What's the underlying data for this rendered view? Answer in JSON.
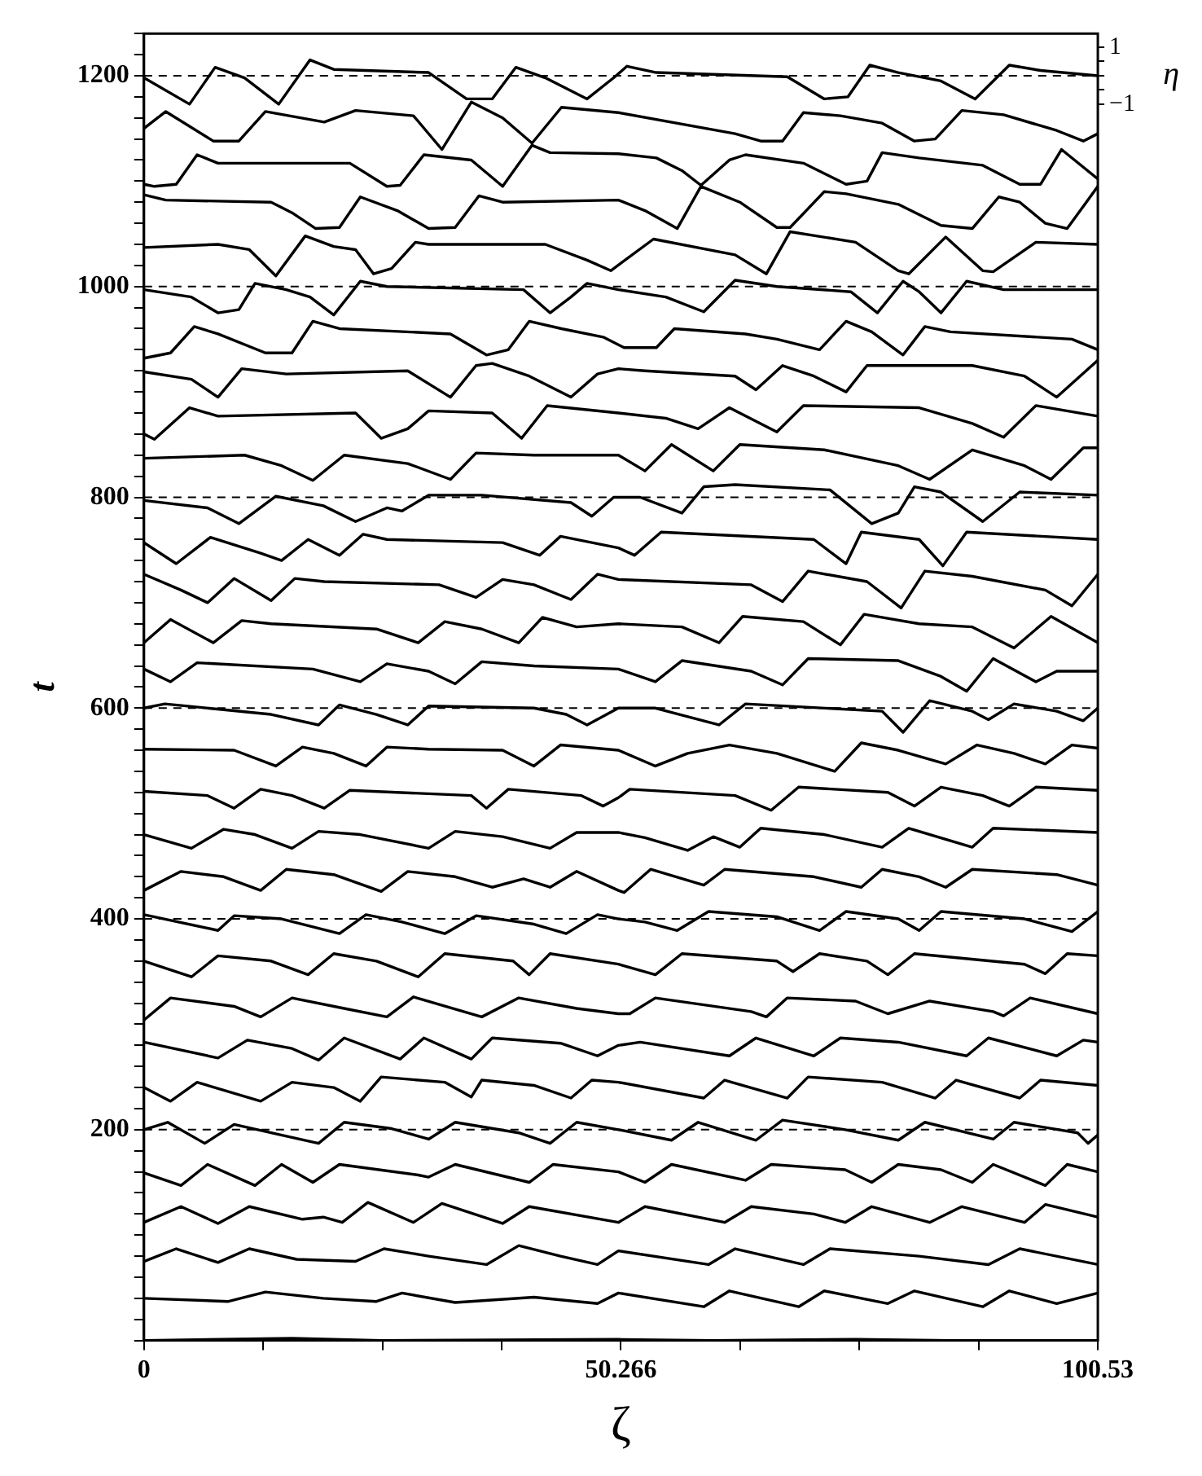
{
  "chart_data": {
    "type": "line",
    "xlabel": "ζ",
    "ylabel": "t",
    "y2label": "η",
    "marker": "none",
    "line_style": "solid",
    "xlim": [
      0,
      100.53
    ],
    "xticks": [
      0,
      {
        "value": 12.566,
        "label": null
      },
      {
        "value": 25.133,
        "label": null
      },
      {
        "value": 37.699,
        "label": null
      },
      50.266,
      {
        "value": 62.832,
        "label": null
      },
      {
        "value": 75.398,
        "label": null
      },
      {
        "value": 87.965,
        "label": null
      },
      100.53
    ],
    "ylim": [
      0,
      1240
    ],
    "yticks": [
      {
        "value": 0,
        "label": null
      },
      {
        "value": 20,
        "label": null
      },
      {
        "value": 40,
        "label": null
      },
      {
        "value": 60,
        "label": null
      },
      {
        "value": 80,
        "label": null
      },
      {
        "value": 100,
        "label": null
      },
      {
        "value": 120,
        "label": null
      },
      {
        "value": 140,
        "label": null
      },
      {
        "value": 160,
        "label": null
      },
      {
        "value": 180,
        "label": null
      },
      200,
      {
        "value": 220,
        "label": null
      },
      {
        "value": 240,
        "label": null
      },
      {
        "value": 260,
        "label": null
      },
      {
        "value": 280,
        "label": null
      },
      {
        "value": 300,
        "label": null
      },
      {
        "value": 320,
        "label": null
      },
      {
        "value": 340,
        "label": null
      },
      {
        "value": 360,
        "label": null
      },
      {
        "value": 380,
        "label": null
      },
      400,
      {
        "value": 420,
        "label": null
      },
      {
        "value": 440,
        "label": null
      },
      {
        "value": 460,
        "label": null
      },
      {
        "value": 480,
        "label": null
      },
      {
        "value": 500,
        "label": null
      },
      {
        "value": 520,
        "label": null
      },
      {
        "value": 540,
        "label": null
      },
      {
        "value": 560,
        "label": null
      },
      {
        "value": 580,
        "label": null
      },
      600,
      {
        "value": 620,
        "label": null
      },
      {
        "value": 640,
        "label": null
      },
      {
        "value": 660,
        "label": null
      },
      {
        "value": 680,
        "label": null
      },
      {
        "value": 700,
        "label": null
      },
      {
        "value": 720,
        "label": null
      },
      {
        "value": 740,
        "label": null
      },
      {
        "value": 760,
        "label": null
      },
      {
        "value": 780,
        "label": null
      },
      800,
      {
        "value": 820,
        "label": null
      },
      {
        "value": 840,
        "label": null
      },
      {
        "value": 860,
        "label": null
      },
      {
        "value": 880,
        "label": null
      },
      {
        "value": 900,
        "label": null
      },
      {
        "value": 920,
        "label": null
      },
      {
        "value": 940,
        "label": null
      },
      {
        "value": 960,
        "label": null
      },
      {
        "value": 980,
        "label": null
      },
      1000,
      {
        "value": 1020,
        "label": null
      },
      {
        "value": 1040,
        "label": null
      },
      {
        "value": 1060,
        "label": null
      },
      {
        "value": 1080,
        "label": null
      },
      {
        "value": 1100,
        "label": null
      },
      {
        "value": 1120,
        "label": null
      },
      {
        "value": 1140,
        "label": null
      },
      {
        "value": 1160,
        "label": null
      },
      {
        "value": 1180,
        "label": null
      },
      1200,
      {
        "value": 1220,
        "label": null
      },
      {
        "value": 1240,
        "label": null
      }
    ],
    "y2lim": [
      -44.4,
      1.48
    ],
    "y2ticks": [
      1,
      {
        "value": 0.5,
        "label": null
      },
      {
        "value": 0,
        "label": null
      },
      {
        "value": -0.5,
        "label": null
      },
      {
        "value": -1,
        "label": "−1"
      }
    ],
    "ref_lines": [
      {
        "axis": "y",
        "value": 200,
        "color": "#000000",
        "line_style": "dashed"
      },
      {
        "axis": "y",
        "value": 400,
        "color": "#000000",
        "line_style": "dashed"
      },
      {
        "axis": "y",
        "value": 600,
        "color": "#000000",
        "line_style": "dashed"
      },
      {
        "axis": "y",
        "value": 800,
        "color": "#000000",
        "line_style": "dashed"
      },
      {
        "axis": "y",
        "value": 1000,
        "color": "#000000",
        "line_style": "dashed"
      },
      {
        "axis": "y",
        "value": 1200,
        "color": "#000000",
        "line_style": "dashed"
      }
    ],
    "series": [
      {
        "color": "#000000",
        "x": [
          0,
          15.6,
          25,
          50,
          60,
          75,
          85,
          100.53
        ],
        "values": [
          0,
          2,
          0,
          1,
          0,
          1,
          0,
          0
        ]
      },
      {
        "color": "#000000",
        "x": [
          0,
          8.9,
          12.8,
          18.9,
          24.5,
          27.2,
          32.8,
          41.1,
          47.8,
          50,
          59,
          61.7,
          69,
          71.7,
          78.4,
          81.2,
          88.4,
          91.2,
          96.2,
          100.53
        ],
        "values": [
          40,
          37,
          46,
          40,
          37,
          45,
          36,
          41,
          35,
          45,
          32,
          47,
          32,
          47,
          35,
          47,
          32,
          47,
          35,
          45
        ]
      },
      {
        "color": "#000000",
        "x": [
          0,
          3.4,
          7.8,
          11.1,
          16.1,
          22.3,
          25.3,
          30,
          36.1,
          39.5,
          43.9,
          47.8,
          50,
          59.5,
          62.3,
          69.5,
          72.3,
          81.7,
          89,
          92.3,
          100.53
        ],
        "values": [
          75,
          87,
          74,
          87,
          77,
          75,
          87,
          80,
          72,
          90,
          80,
          72,
          85,
          72,
          87,
          72,
          87,
          80,
          72,
          87,
          72
        ]
      },
      {
        "color": "#000000",
        "x": [
          0,
          3.9,
          7.8,
          11.1,
          16.7,
          18.9,
          20.9,
          23.6,
          28.4,
          31.4,
          37.8,
          40.6,
          50,
          52.8,
          61.2,
          64,
          70.6,
          73.9,
          76.7,
          82.8,
          86.2,
          92.8,
          95,
          100.53
        ],
        "values": [
          112,
          127,
          111,
          127,
          115,
          117,
          112,
          131,
          112,
          130,
          111,
          127,
          112,
          127,
          112,
          127,
          120,
          112,
          127,
          112,
          127,
          112,
          129,
          117
        ]
      },
      {
        "color": "#000000",
        "x": [
          0,
          3.9,
          6.7,
          11.7,
          14.5,
          17.8,
          20.6,
          28.9,
          30,
          32.8,
          40.6,
          43.1,
          50,
          52.8,
          55.6,
          63.4,
          66.1,
          73.9,
          76.7,
          79.5,
          84,
          87.3,
          89.5,
          95,
          97.3,
          100.53
        ],
        "values": [
          159,
          147,
          167,
          147,
          167,
          150,
          167,
          157,
          155,
          167,
          150,
          167,
          160,
          150,
          167,
          152,
          167,
          162,
          150,
          167,
          162,
          150,
          167,
          147,
          167,
          160
        ]
      },
      {
        "color": "#000000",
        "x": [
          0,
          2.5,
          6.4,
          9.5,
          13.4,
          18.4,
          21.1,
          26.1,
          30,
          32.8,
          39.5,
          42.8,
          45.6,
          50,
          55.6,
          58.4,
          64.5,
          67.3,
          73.9,
          79.5,
          82.3,
          89.5,
          91.7,
          98.4,
          99.5,
          100.53
        ],
        "values": [
          200,
          207,
          187,
          205,
          197,
          187,
          207,
          201,
          191,
          207,
          197,
          187,
          207,
          200,
          190,
          207,
          190,
          209,
          200,
          190,
          207,
          191,
          207,
          197,
          187,
          195
        ]
      },
      {
        "color": "#000000",
        "x": [
          0,
          2.8,
          5.6,
          12.3,
          15.6,
          20,
          22.8,
          25,
          31.7,
          34.5,
          35.6,
          41.1,
          45,
          47.2,
          50,
          59,
          61.2,
          67.8,
          70,
          77.8,
          83.4,
          85.6,
          92.3,
          94.5,
          100.53
        ],
        "values": [
          240,
          227,
          245,
          227,
          245,
          240,
          227,
          250,
          245,
          231,
          247,
          242,
          230,
          247,
          245,
          230,
          247,
          230,
          250,
          245,
          230,
          247,
          230,
          247,
          242
        ]
      },
      {
        "color": "#000000",
        "x": [
          0,
          7.8,
          10.9,
          15.6,
          18.4,
          21.1,
          27,
          29.5,
          34.5,
          36.7,
          43.9,
          47.8,
          50,
          52.3,
          61.7,
          64.5,
          70.6,
          73.4,
          79.5,
          86.7,
          89,
          96.2,
          99,
          100.53
        ],
        "values": [
          283,
          268,
          285,
          277,
          266,
          287,
          267,
          287,
          267,
          287,
          282,
          270,
          280,
          283,
          270,
          287,
          270,
          287,
          283,
          270,
          287,
          270,
          285,
          283
        ]
      },
      {
        "color": "#000000",
        "x": [
          0,
          2.8,
          9.5,
          12.3,
          15.6,
          21.1,
          25.6,
          28.4,
          35.6,
          39.5,
          45.6,
          50,
          51.2,
          53.9,
          64,
          65.6,
          67.8,
          75,
          78.4,
          82.8,
          89.5,
          90.6,
          93.4,
          100.53
        ],
        "values": [
          304,
          325,
          317,
          307,
          325,
          315,
          307,
          326,
          307,
          325,
          315,
          310,
          310,
          325,
          312,
          307,
          325,
          322,
          310,
          322,
          312,
          308,
          325,
          310
        ]
      },
      {
        "color": "#000000",
        "x": [
          0,
          5,
          7.8,
          13.4,
          17.3,
          20,
          24.5,
          28.9,
          31.7,
          38.9,
          40.6,
          42.8,
          50,
          53.9,
          56.7,
          66.7,
          68.4,
          71.2,
          76.2,
          78.4,
          81.2,
          92.8,
          95,
          97.3,
          100.53
        ],
        "values": [
          360,
          345,
          365,
          360,
          347,
          367,
          360,
          345,
          367,
          360,
          347,
          367,
          357,
          347,
          367,
          360,
          350,
          367,
          360,
          347,
          367,
          357,
          348,
          367,
          365
        ]
      },
      {
        "color": "#000000",
        "x": [
          0,
          7.8,
          9.5,
          14.5,
          20.6,
          23.4,
          27.2,
          31.7,
          35,
          41.1,
          44.5,
          47.8,
          50,
          52.8,
          56.2,
          59.5,
          66.7,
          71.2,
          74,
          79.5,
          81.7,
          84,
          92.8,
          97.8,
          100.53
        ],
        "values": [
          404,
          389,
          403,
          400,
          386,
          404,
          397,
          386,
          403,
          395,
          386,
          404,
          400,
          397,
          389,
          407,
          402,
          389,
          407,
          400,
          389,
          407,
          400,
          388,
          407
        ]
      },
      {
        "color": "#000000",
        "x": [
          0,
          3.9,
          8.4,
          12.3,
          15,
          20,
          25,
          27.8,
          32.8,
          36.7,
          40,
          42.8,
          45.6,
          50,
          50.6,
          53.4,
          59,
          61.2,
          70.6,
          75.6,
          77.8,
          81.7,
          84.5,
          87.3,
          96.2,
          100.53
        ],
        "values": [
          427,
          445,
          440,
          427,
          447,
          442,
          426,
          445,
          440,
          430,
          438,
          430,
          445,
          427,
          425,
          447,
          432,
          447,
          440,
          430,
          447,
          440,
          430,
          447,
          442,
          432
        ]
      },
      {
        "color": "#000000",
        "x": [
          0,
          5,
          8.4,
          11.7,
          15.6,
          18.4,
          22.8,
          30,
          32.8,
          37.8,
          42.8,
          45.6,
          50,
          52.8,
          57.3,
          60,
          62.8,
          65,
          71.7,
          77.8,
          80.6,
          87.3,
          89.5,
          100.53
        ],
        "values": [
          480,
          467,
          485,
          480,
          467,
          483,
          480,
          467,
          483,
          478,
          467,
          482,
          482,
          477,
          465,
          478,
          468,
          486,
          480,
          468,
          486,
          468,
          486,
          482
        ]
      },
      {
        "color": "#000000",
        "x": [
          0,
          6.7,
          9.5,
          12.3,
          15.6,
          19,
          21.7,
          34.5,
          36.1,
          38.4,
          46.1,
          48.4,
          50,
          51.2,
          62.3,
          66.1,
          69,
          78.4,
          81.2,
          84,
          88.4,
          91.2,
          94,
          100.53
        ],
        "values": [
          521,
          517,
          505,
          523,
          517,
          505,
          522,
          517,
          505,
          523,
          517,
          507,
          515,
          523,
          517,
          503,
          525,
          520,
          507,
          525,
          517,
          507,
          525,
          522
        ]
      },
      {
        "color": "#000000",
        "x": [
          0,
          9.5,
          13.9,
          16.7,
          20,
          23.4,
          25.6,
          30,
          37.8,
          41.1,
          43.9,
          50,
          53.9,
          57.3,
          61.7,
          66.7,
          72.8,
          75.6,
          79.5,
          84.5,
          87.8,
          91.7,
          95,
          97.8,
          100.53
        ],
        "values": [
          561,
          560,
          545,
          563,
          557,
          545,
          563,
          561,
          560,
          545,
          565,
          560,
          545,
          557,
          565,
          557,
          540,
          567,
          560,
          547,
          565,
          557,
          547,
          565,
          562
        ]
      },
      {
        "color": "#000000",
        "x": [
          0,
          2.2,
          13.4,
          18.4,
          20.6,
          24.5,
          27.8,
          30,
          41.1,
          44.5,
          46.7,
          50,
          53.9,
          60.6,
          63.4,
          77.8,
          80,
          82.8,
          87.3,
          89,
          91.7,
          96.2,
          99,
          100.53
        ],
        "values": [
          600,
          604,
          594,
          584,
          603,
          594,
          584,
          602,
          600,
          594,
          584,
          600,
          600,
          584,
          604,
          597,
          577,
          607,
          597,
          589,
          604,
          597,
          588,
          600
        ]
      },
      {
        "color": "#000000",
        "x": [
          0,
          2.8,
          5.6,
          17.8,
          22.8,
          25.6,
          30,
          32.8,
          35.6,
          41.1,
          50,
          53.9,
          56.7,
          64,
          67.3,
          70,
          79.5,
          84,
          86.7,
          89.5,
          94,
          96.2,
          100.53
        ],
        "values": [
          637,
          625,
          643,
          637,
          625,
          642,
          635,
          623,
          644,
          640,
          637,
          625,
          645,
          635,
          622,
          647,
          645,
          630,
          616,
          647,
          625,
          635,
          635
        ]
      },
      {
        "color": "#000000",
        "x": [
          0,
          2.8,
          7.3,
          10.3,
          13.4,
          24.5,
          28.9,
          31.7,
          35.6,
          39.5,
          42,
          45.6,
          50,
          56.7,
          60.6,
          63.1,
          69.5,
          73.4,
          75.9,
          81.7,
          87.3,
          91.7,
          95.6,
          100.53
        ],
        "values": [
          662,
          684,
          662,
          683,
          680,
          675,
          662,
          682,
          675,
          662,
          686,
          677,
          680,
          677,
          662,
          687,
          682,
          660,
          689,
          680,
          677,
          657,
          687,
          662
        ]
      },
      {
        "color": "#000000",
        "x": [
          0,
          3.9,
          6.7,
          9.5,
          13.4,
          15.9,
          19,
          31.1,
          35,
          37.8,
          41.1,
          45,
          47.8,
          50,
          64,
          67.3,
          70,
          76.2,
          79.8,
          82.3,
          87.3,
          95,
          97.8,
          100.53
        ],
        "values": [
          727,
          712,
          700,
          723,
          702,
          723,
          720,
          717,
          705,
          722,
          717,
          703,
          727,
          722,
          717,
          701,
          730,
          720,
          695,
          730,
          725,
          712,
          697,
          727
        ]
      },
      {
        "color": "#000000",
        "x": [
          0,
          3.4,
          7,
          12.3,
          14.5,
          17.3,
          20.6,
          23.1,
          25.6,
          37.8,
          41.7,
          43.9,
          50,
          51.7,
          54.5,
          70.6,
          74,
          75.6,
          81.7,
          84.2,
          86.7,
          100.53
        ],
        "values": [
          757,
          737,
          762,
          747,
          740,
          760,
          745,
          765,
          760,
          757,
          745,
          763,
          752,
          745,
          767,
          760,
          737,
          767,
          760,
          735,
          767,
          760
        ]
      },
      {
        "color": "#000000",
        "x": [
          0,
          6.7,
          10,
          13.9,
          18.9,
          22.3,
          25.6,
          27.2,
          30,
          35.6,
          45,
          47.2,
          49.5,
          52.3,
          56.7,
          59,
          62.3,
          72.3,
          76.7,
          79.5,
          81.2,
          84,
          88.4,
          92.3,
          100.53
        ],
        "values": [
          797,
          790,
          775,
          801,
          792,
          777,
          790,
          787,
          802,
          802,
          795,
          782,
          800,
          800,
          785,
          810,
          812,
          807,
          775,
          785,
          810,
          805,
          777,
          805,
          802
        ]
      },
      {
        "color": "#000000",
        "x": [
          0,
          10.6,
          14.5,
          17.8,
          21.1,
          27.8,
          32.3,
          35,
          41.1,
          50,
          52.8,
          55.6,
          60,
          62.8,
          71.7,
          79.5,
          82.8,
          87.3,
          92.8,
          95.6,
          99,
          100.53
        ],
        "values": [
          837,
          840,
          830,
          816,
          840,
          832,
          817,
          842,
          840,
          840,
          825,
          850,
          825,
          850,
          845,
          830,
          817,
          845,
          830,
          817,
          847,
          847
        ]
      },
      {
        "color": "#000000",
        "x": [
          0,
          1.1,
          4.8,
          7.8,
          22.3,
          25,
          27.8,
          30,
          36.7,
          39.8,
          42.5,
          50,
          55,
          58.4,
          61.7,
          66.7,
          69.5,
          81.7,
          87.3,
          90.6,
          94,
          100.53
        ],
        "values": [
          860,
          855,
          885,
          877,
          880,
          856,
          865,
          882,
          880,
          856,
          887,
          880,
          875,
          865,
          885,
          862,
          887,
          885,
          870,
          857,
          887,
          877
        ]
      },
      {
        "color": "#000000",
        "x": [
          0,
          5,
          7.8,
          10.3,
          15,
          27.8,
          32.3,
          35,
          36.7,
          40.6,
          45,
          47.8,
          50,
          52.8,
          62.3,
          64.5,
          67.3,
          70.6,
          74,
          76.2,
          87.3,
          92.8,
          96.2,
          100.53
        ],
        "values": [
          919,
          912,
          895,
          922,
          917,
          920,
          895,
          925,
          927,
          915,
          895,
          917,
          922,
          920,
          915,
          902,
          925,
          915,
          900,
          925,
          925,
          915,
          895,
          930
        ]
      },
      {
        "color": "#000000",
        "x": [
          0,
          2.8,
          5.3,
          7.8,
          12.8,
          15.6,
          17.8,
          20.6,
          32.3,
          36.1,
          38.4,
          40.6,
          44,
          48.4,
          50.6,
          54,
          55.9,
          63.4,
          66.7,
          71.2,
          74,
          76.7,
          80,
          82.3,
          85,
          97.8,
          100.53
        ],
        "values": [
          932,
          937,
          962,
          955,
          937,
          937,
          967,
          960,
          955,
          935,
          940,
          967,
          960,
          952,
          942,
          942,
          960,
          955,
          950,
          940,
          967,
          957,
          935,
          962,
          957,
          950,
          940
        ]
      },
      {
        "color": "#000000",
        "x": [
          0,
          5,
          7.8,
          10,
          11.7,
          15,
          17.5,
          20,
          22.8,
          25.6,
          40,
          42.8,
          45,
          46.7,
          50,
          55,
          59,
          62.3,
          66.7,
          74.5,
          77.3,
          80,
          81.7,
          84,
          86.7,
          90.6,
          100.53
        ],
        "values": [
          997,
          990,
          975,
          978,
          1003,
          997,
          990,
          973,
          1005,
          1000,
          997,
          975,
          990,
          1003,
          997,
          990,
          976,
          1006,
          1000,
          995,
          975,
          1005,
          995,
          975,
          1005,
          997,
          997
        ]
      },
      {
        "color": "#000000",
        "x": [
          0,
          7.8,
          11.1,
          13.9,
          17,
          20,
          22.3,
          24.2,
          26.1,
          28.6,
          30,
          42.3,
          46.7,
          49.2,
          53.7,
          62.3,
          65.6,
          68.1,
          75,
          79.5,
          80.6,
          84.5,
          88.4,
          89.5,
          94,
          100.53
        ],
        "values": [
          1037,
          1040,
          1035,
          1010,
          1048,
          1038,
          1035,
          1012,
          1017,
          1042,
          1040,
          1040,
          1025,
          1015,
          1045,
          1030,
          1012,
          1052,
          1042,
          1015,
          1012,
          1047,
          1015,
          1014,
          1042,
          1040
        ]
      },
      {
        "color": "#000000",
        "x": [
          0,
          2.3,
          13.4,
          15.6,
          18.1,
          20.6,
          22.8,
          26.7,
          30,
          32.8,
          35.3,
          37.8,
          50,
          52.8,
          56.2,
          58.7,
          62.8,
          66.7,
          68.1,
          71.7,
          74,
          79.5,
          84,
          87.3,
          90.1,
          92.3,
          95,
          97.3,
          100.53
        ],
        "values": [
          1087,
          1082,
          1080,
          1070,
          1055,
          1056,
          1085,
          1072,
          1055,
          1056,
          1086,
          1080,
          1082,
          1072,
          1055,
          1095,
          1080,
          1056,
          1056,
          1090,
          1088,
          1078,
          1058,
          1055,
          1085,
          1080,
          1060,
          1055,
          1095
        ]
      },
      {
        "color": "#000000",
        "x": [
          0,
          1.1,
          3.4,
          5.6,
          7.8,
          21.7,
          25.6,
          27,
          29.5,
          34.5,
          37.8,
          40.9,
          42.8,
          50,
          54,
          56.7,
          58.7,
          61.7,
          63.4,
          69.5,
          74,
          76.2,
          77.8,
          81.7,
          88.4,
          92.3,
          94.5,
          96.7,
          100.53
        ],
        "values": [
          1097,
          1095,
          1097,
          1125,
          1117,
          1117,
          1095,
          1096,
          1125,
          1120,
          1095,
          1134,
          1127,
          1126,
          1122,
          1110,
          1096,
          1120,
          1125,
          1117,
          1097,
          1100,
          1127,
          1122,
          1115,
          1097,
          1097,
          1130,
          1102
        ]
      },
      {
        "color": "#000000",
        "x": [
          0,
          2.3,
          7.3,
          10,
          12.8,
          19,
          22.3,
          28.4,
          31.4,
          34.5,
          37.8,
          40.9,
          44,
          50,
          62.3,
          65,
          67.3,
          69.5,
          73.4,
          77.8,
          81.2,
          83.4,
          86.2,
          90.6,
          96.2,
          99,
          100.53
        ],
        "values": [
          1150,
          1166,
          1138,
          1138,
          1166,
          1156,
          1167,
          1162,
          1130,
          1175,
          1160,
          1136,
          1170,
          1165,
          1145,
          1138,
          1138,
          1165,
          1162,
          1155,
          1138,
          1140,
          1167,
          1163,
          1148,
          1138,
          1145
        ]
      },
      {
        "color": "#000000",
        "x": [
          0,
          4.8,
          7.5,
          10.6,
          14.2,
          17.5,
          20,
          30,
          34,
          36.7,
          39.2,
          42.3,
          46.7,
          49.5,
          50.9,
          54,
          67.8,
          71.7,
          74.2,
          76.5,
          79.5,
          84,
          87.6,
          91.2,
          94.5,
          100.53
        ],
        "values": [
          1198,
          1173,
          1208,
          1198,
          1173,
          1215,
          1206,
          1203,
          1178,
          1178,
          1208,
          1198,
          1178,
          1198,
          1209,
          1203,
          1199,
          1178,
          1180,
          1210,
          1203,
          1195,
          1178,
          1210,
          1205,
          1200
        ]
      }
    ]
  }
}
